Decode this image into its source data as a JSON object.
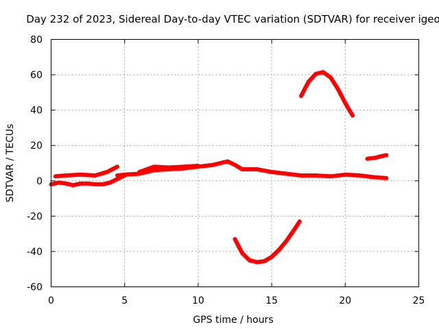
{
  "chart_data": {
    "type": "line",
    "title": "Day 232 of 2023, Sidereal Day-to-day VTEC variation (SDTVAR) for receiver igeo",
    "xlabel": "GPS time / hours",
    "ylabel": "SDTVAR / TECUs",
    "xlim": [
      0,
      25
    ],
    "ylim": [
      -60,
      80
    ],
    "xticks": [
      0,
      5,
      10,
      15,
      20,
      25
    ],
    "yticks": [
      -60,
      -40,
      -20,
      0,
      20,
      40,
      60,
      80
    ],
    "xtick_labels": [
      "0",
      "5",
      "10",
      "15",
      "20",
      "25"
    ],
    "ytick_labels": [
      "-60",
      "-40",
      "-20",
      "0",
      "20",
      "40",
      "60",
      "80"
    ],
    "grid": true,
    "color": "#ff0000",
    "series": [
      {
        "name": "upper-track-early",
        "x": [
          0.3,
          1.0,
          2.0,
          3.0,
          3.8,
          4.5
        ],
        "y": [
          2.5,
          3,
          3.5,
          3,
          5,
          8
        ]
      },
      {
        "name": "lower-track-early",
        "x": [
          0,
          0.5,
          1.0,
          1.5,
          2.0,
          2.5,
          3.0,
          3.5,
          4.0,
          4.5,
          5.0
        ],
        "y": [
          -2,
          -1,
          -1.5,
          -2.5,
          -1.5,
          -1.5,
          -2,
          -2,
          -1,
          1,
          3
        ]
      },
      {
        "name": "main-track",
        "x": [
          4.5,
          5.0,
          6.0,
          7.0,
          8.0,
          9.0,
          10.0,
          11.0,
          11.5,
          12.0,
          12.5,
          13.0,
          14.0,
          15.0,
          16.0,
          17.0,
          18.0,
          19.0,
          20.0,
          21.0,
          22.0,
          22.8
        ],
        "y": [
          3,
          3.5,
          4,
          6,
          6.5,
          7,
          8,
          9,
          10,
          11,
          9,
          6.5,
          6.5,
          5,
          4,
          3,
          3,
          2.5,
          3.5,
          3,
          2,
          1.5
        ]
      },
      {
        "name": "mid-wave-a",
        "x": [
          6.0,
          7.0,
          8.0,
          9.0,
          10.0
        ],
        "y": [
          5,
          8,
          7.5,
          8,
          8.5
        ]
      },
      {
        "name": "negative-arc",
        "x": [
          12.5,
          13.0,
          13.5,
          14.0,
          14.5,
          15.0,
          15.5,
          16.0,
          16.5,
          16.9
        ],
        "y": [
          -33,
          -41,
          -45,
          -46,
          -45.5,
          -43,
          -39,
          -34,
          -28,
          -23
        ]
      },
      {
        "name": "positive-arc",
        "x": [
          17.0,
          17.5,
          18.0,
          18.5,
          19.0,
          19.5,
          20.0,
          20.5
        ],
        "y": [
          48,
          56,
          60.5,
          61.5,
          58.5,
          52,
          44,
          37
        ]
      },
      {
        "name": "late-segment",
        "x": [
          21.5,
          22.0,
          22.5,
          22.8
        ],
        "y": [
          12.5,
          13,
          14,
          14.5
        ]
      }
    ]
  }
}
